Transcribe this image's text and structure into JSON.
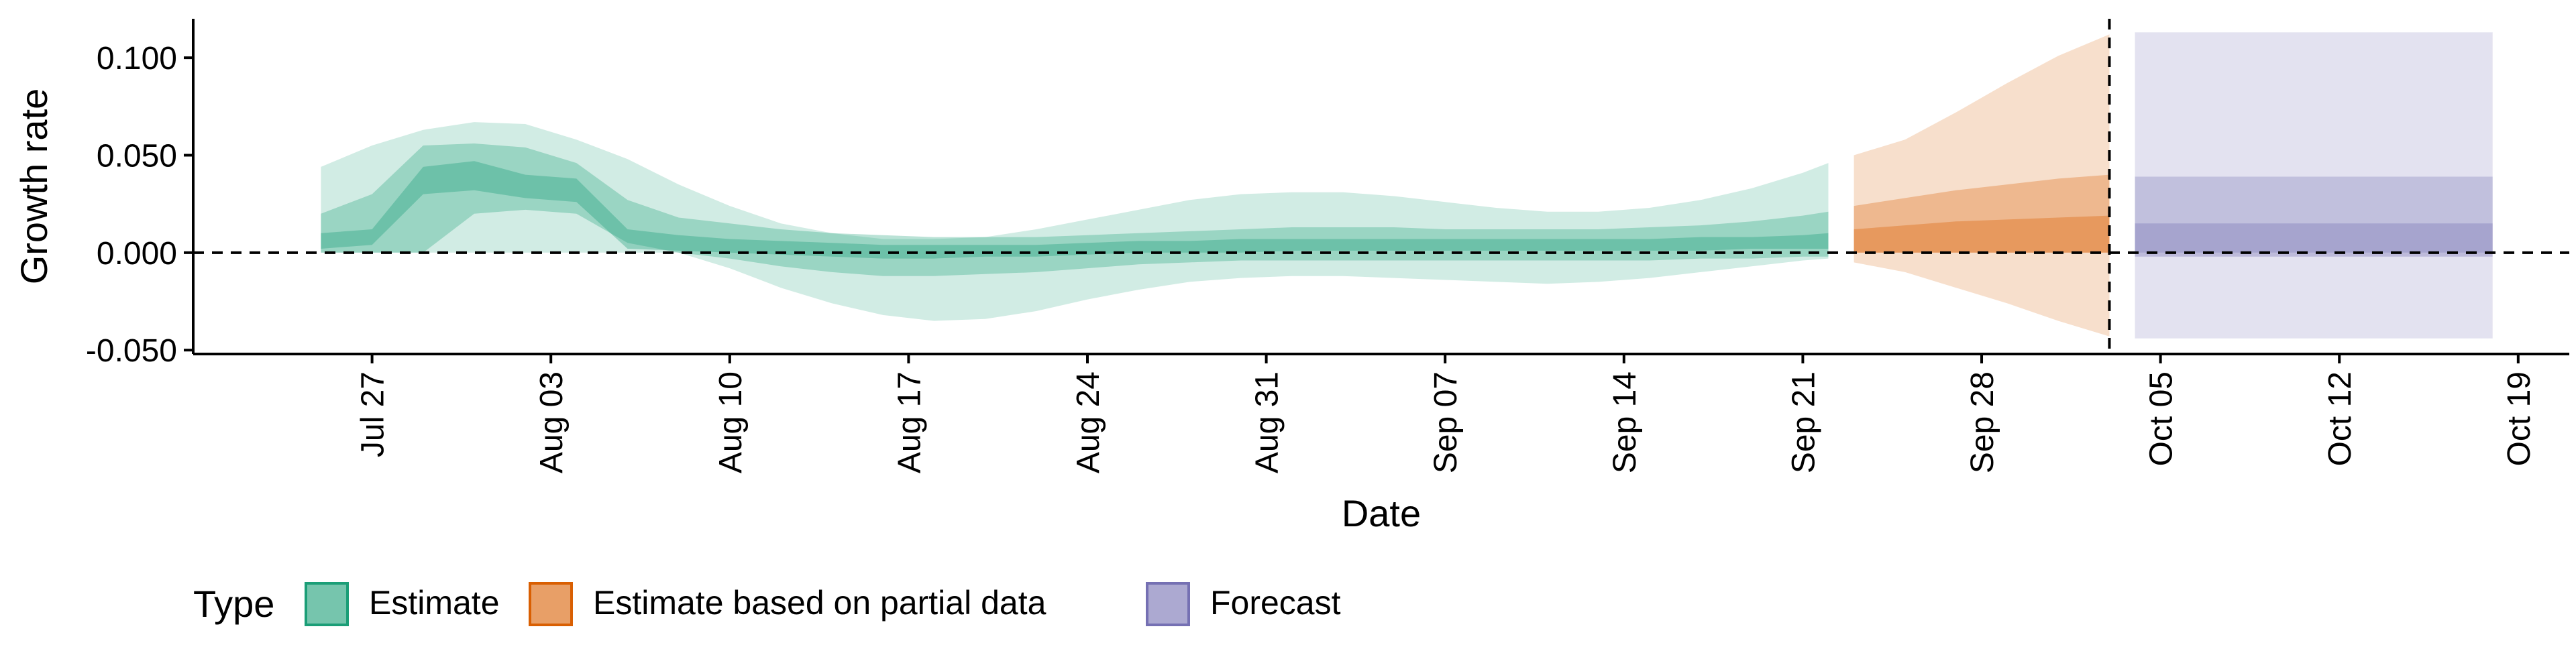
{
  "chart_data": {
    "type": "area",
    "xlabel": "Date",
    "ylabel": "Growth rate",
    "ylim": [
      -0.052,
      0.12
    ],
    "y_ticks": [
      -0.05,
      0.0,
      0.05,
      0.1
    ],
    "y_tick_labels": [
      "-0.050",
      "0.000",
      "0.050",
      "0.100"
    ],
    "x_ticks": [
      "2020-07-27",
      "2020-08-03",
      "2020-08-10",
      "2020-08-17",
      "2020-08-24",
      "2020-08-31",
      "2020-09-07",
      "2020-09-14",
      "2020-09-21",
      "2020-09-28",
      "2020-10-05",
      "2020-10-12",
      "2020-10-19"
    ],
    "x_tick_labels": [
      "Jul 27",
      "Aug 03",
      "Aug 10",
      "Aug 17",
      "Aug 24",
      "Aug 31",
      "Sep 07",
      "Sep 14",
      "Sep 21",
      "Sep 28",
      "Oct 05",
      "Oct 12",
      "Oct 19"
    ],
    "xlim": [
      "2020-07-20",
      "2020-10-21"
    ],
    "reference_lines": {
      "horizontal_y": 0,
      "vertical_date": "2020-10-03"
    },
    "grid": false,
    "legend": {
      "title": "Type",
      "position": "bottom-left",
      "entries": [
        {
          "label": "Estimate",
          "color": "#1B9E77"
        },
        {
          "label": "Estimate based on partial data",
          "color": "#D95F02"
        },
        {
          "label": "Forecast",
          "color": "#7570B3"
        }
      ]
    },
    "series": [
      {
        "name": "Estimate",
        "color": "#1B9E77",
        "x": [
          "2020-07-25",
          "2020-07-27",
          "2020-07-29",
          "2020-07-31",
          "2020-08-02",
          "2020-08-04",
          "2020-08-06",
          "2020-08-08",
          "2020-08-10",
          "2020-08-12",
          "2020-08-14",
          "2020-08-16",
          "2020-08-18",
          "2020-08-20",
          "2020-08-22",
          "2020-08-24",
          "2020-08-26",
          "2020-08-28",
          "2020-08-30",
          "2020-09-01",
          "2020-09-03",
          "2020-09-05",
          "2020-09-07",
          "2020-09-09",
          "2020-09-11",
          "2020-09-13",
          "2020-09-15",
          "2020-09-17",
          "2020-09-19",
          "2020-09-21",
          "2020-09-22"
        ],
        "upper_90": [
          0.044,
          0.055,
          0.063,
          0.067,
          0.066,
          0.058,
          0.048,
          0.035,
          0.024,
          0.015,
          0.01,
          0.007,
          0.007,
          0.008,
          0.012,
          0.017,
          0.022,
          0.027,
          0.03,
          0.031,
          0.031,
          0.029,
          0.026,
          0.023,
          0.021,
          0.021,
          0.023,
          0.027,
          0.033,
          0.041,
          0.046
        ],
        "lower_90": [
          0.0,
          0.0,
          0.0,
          0.0,
          0.0,
          0.0,
          0.0,
          0.0,
          -0.008,
          -0.018,
          -0.026,
          -0.032,
          -0.035,
          -0.034,
          -0.03,
          -0.024,
          -0.019,
          -0.015,
          -0.013,
          -0.012,
          -0.012,
          -0.013,
          -0.014,
          -0.015,
          -0.016,
          -0.015,
          -0.013,
          -0.01,
          -0.007,
          -0.004,
          -0.003
        ],
        "upper_50": [
          0.02,
          0.03,
          0.055,
          0.056,
          0.054,
          0.046,
          0.027,
          0.018,
          0.015,
          0.012,
          0.01,
          0.009,
          0.008,
          0.008,
          0.008,
          0.009,
          0.01,
          0.011,
          0.012,
          0.013,
          0.013,
          0.013,
          0.012,
          0.012,
          0.012,
          0.012,
          0.013,
          0.014,
          0.016,
          0.019,
          0.021
        ],
        "lower_50": [
          0.0,
          0.0,
          0.0,
          0.02,
          0.022,
          0.02,
          0.005,
          0.0,
          -0.003,
          -0.007,
          -0.01,
          -0.012,
          -0.012,
          -0.011,
          -0.01,
          -0.008,
          -0.006,
          -0.005,
          -0.004,
          -0.004,
          -0.004,
          -0.004,
          -0.004,
          -0.004,
          -0.004,
          -0.004,
          -0.004,
          -0.003,
          -0.003,
          -0.002,
          -0.002
        ],
        "upper_20": [
          0.01,
          0.012,
          0.044,
          0.047,
          0.04,
          0.038,
          0.012,
          0.009,
          0.007,
          0.006,
          0.005,
          0.004,
          0.004,
          0.004,
          0.004,
          0.005,
          0.006,
          0.006,
          0.007,
          0.007,
          0.007,
          0.007,
          0.007,
          0.007,
          0.007,
          0.007,
          0.007,
          0.008,
          0.008,
          0.009,
          0.01
        ],
        "lower_20": [
          0.002,
          0.004,
          0.03,
          0.032,
          0.028,
          0.026,
          0.002,
          0.001,
          0.0,
          -0.001,
          -0.002,
          -0.003,
          -0.003,
          -0.002,
          -0.002,
          -0.001,
          0.0,
          0.0,
          0.0,
          0.001,
          0.001,
          0.001,
          0.001,
          0.001,
          0.001,
          0.001,
          0.001,
          0.001,
          0.002,
          0.002,
          0.002
        ]
      },
      {
        "name": "Estimate based on partial data",
        "color": "#D95F02",
        "x": [
          "2020-09-23",
          "2020-09-25",
          "2020-09-27",
          "2020-09-29",
          "2020-10-01",
          "2020-10-03"
        ],
        "upper_90": [
          0.05,
          0.058,
          0.072,
          0.087,
          0.101,
          0.112
        ],
        "lower_90": [
          -0.005,
          -0.01,
          -0.018,
          -0.026,
          -0.035,
          -0.043
        ],
        "upper_50": [
          0.024,
          0.028,
          0.032,
          0.035,
          0.038,
          0.04
        ],
        "lower_50": [
          0.0,
          0.0,
          0.0,
          0.0,
          0.0,
          0.0
        ],
        "upper_20": [
          0.012,
          0.014,
          0.016,
          0.017,
          0.018,
          0.019
        ],
        "lower_20": [
          0.0,
          0.0,
          0.0,
          0.0,
          0.0,
          0.0
        ]
      },
      {
        "name": "Forecast",
        "color": "#7570B3",
        "x": [
          "2020-10-04",
          "2020-10-18"
        ],
        "upper_90": [
          0.113,
          0.113
        ],
        "lower_90": [
          -0.044,
          -0.044
        ],
        "upper_50": [
          0.039,
          0.039
        ],
        "lower_50": [
          0.0,
          0.0
        ],
        "upper_20": [
          0.015,
          0.015
        ],
        "lower_20": [
          -0.002,
          -0.002
        ]
      }
    ]
  }
}
